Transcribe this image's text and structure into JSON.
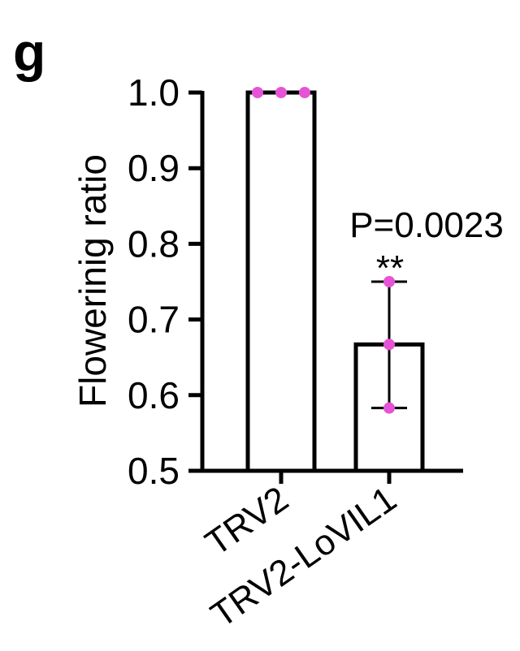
{
  "panel_label": "g",
  "chart_data": {
    "type": "bar",
    "ylabel": "Flowerinig ratio",
    "ylim": [
      0.5,
      1.0
    ],
    "yticks": [
      0.5,
      0.6,
      0.7,
      0.8,
      0.9,
      1.0
    ],
    "ytick_labels": [
      "0.5",
      "0.6",
      "0.7",
      "0.8",
      "0.9",
      "1.0"
    ],
    "categories": [
      "TRV2",
      "TRV2-LoVIL1"
    ],
    "values": [
      1.0,
      0.667
    ],
    "error_bars": [
      {
        "low": 1.0,
        "high": 1.0
      },
      {
        "low": 0.583,
        "high": 0.75
      }
    ],
    "points": [
      [
        1.0,
        1.0,
        1.0
      ],
      [
        0.75,
        0.667,
        0.583
      ]
    ],
    "annotation": {
      "p_value": "P=0.0023",
      "significance": "**"
    },
    "colors": {
      "bar_fill": "#ffffff",
      "bar_stroke": "#000000",
      "point": "#e653d6"
    }
  }
}
